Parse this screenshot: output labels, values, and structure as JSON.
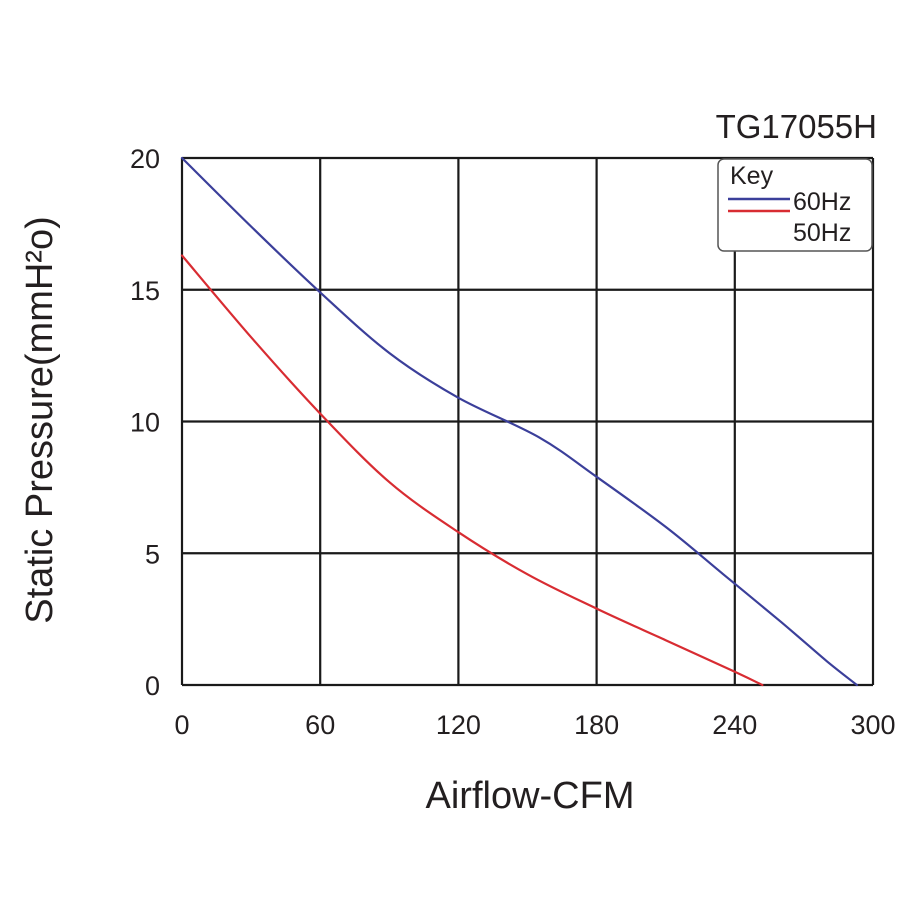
{
  "chart_data": {
    "type": "line",
    "title": "TG17055H",
    "xlabel": "Airflow-CFM",
    "ylabel": "Static Pressure(mmH²o)",
    "xlim": [
      0,
      300
    ],
    "ylim": [
      0,
      20
    ],
    "x_ticks": [
      "0",
      "60",
      "120",
      "180",
      "240",
      "300"
    ],
    "y_ticks": [
      "0",
      "5",
      "10",
      "15",
      "20"
    ],
    "grid": true,
    "legend": {
      "title": "Key",
      "placement": "top-right"
    },
    "series": [
      {
        "name": "60Hz",
        "color": "#3b3f9a",
        "points": [
          [
            0,
            20
          ],
          [
            30,
            17.4
          ],
          [
            60,
            14.9
          ],
          [
            90,
            12.6
          ],
          [
            120,
            10.9
          ],
          [
            155,
            9.4
          ],
          [
            180,
            7.9
          ],
          [
            210,
            6.0
          ],
          [
            235,
            4.2
          ],
          [
            260,
            2.4
          ],
          [
            280,
            0.9
          ],
          [
            293,
            0
          ]
        ]
      },
      {
        "name": "50Hz",
        "color": "#d82c32",
        "points": [
          [
            0,
            16.3
          ],
          [
            30,
            13.2
          ],
          [
            60,
            10.3
          ],
          [
            90,
            7.7
          ],
          [
            120,
            5.8
          ],
          [
            150,
            4.2
          ],
          [
            180,
            2.9
          ],
          [
            210,
            1.7
          ],
          [
            240,
            0.5
          ],
          [
            252,
            0
          ]
        ]
      }
    ]
  }
}
